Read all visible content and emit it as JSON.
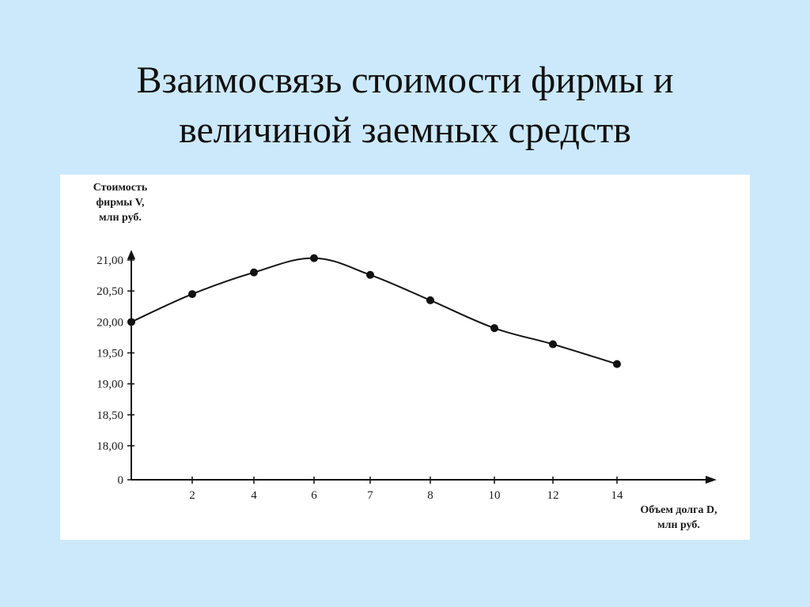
{
  "slide": {
    "title_line1": "Взаимосвязь стоимости фирмы и",
    "title_line2": "величиной заемных средств"
  },
  "chart_data": {
    "type": "line",
    "ylabel_lines": [
      "Стоимость",
      "фирмы V,",
      "млн руб."
    ],
    "xlabel_lines": [
      "Объем долга D,",
      "млн руб."
    ],
    "yticks": [
      "21,00",
      "20,50",
      "20,00",
      "19,50",
      "19,00",
      "18,50",
      "18,00",
      "0"
    ],
    "xticks": [
      "2",
      "4",
      "6",
      "7",
      "8",
      "10",
      "12",
      "14"
    ],
    "x": [
      0,
      2,
      4,
      6,
      7,
      8,
      10,
      12,
      14
    ],
    "y": [
      20.0,
      20.45,
      20.8,
      21.03,
      20.76,
      20.35,
      19.9,
      19.64,
      19.32
    ],
    "ylim": [
      18.0,
      21.0
    ],
    "y_axis_break": true,
    "grid": false,
    "marker": "filled-circle",
    "color": "#111111"
  }
}
